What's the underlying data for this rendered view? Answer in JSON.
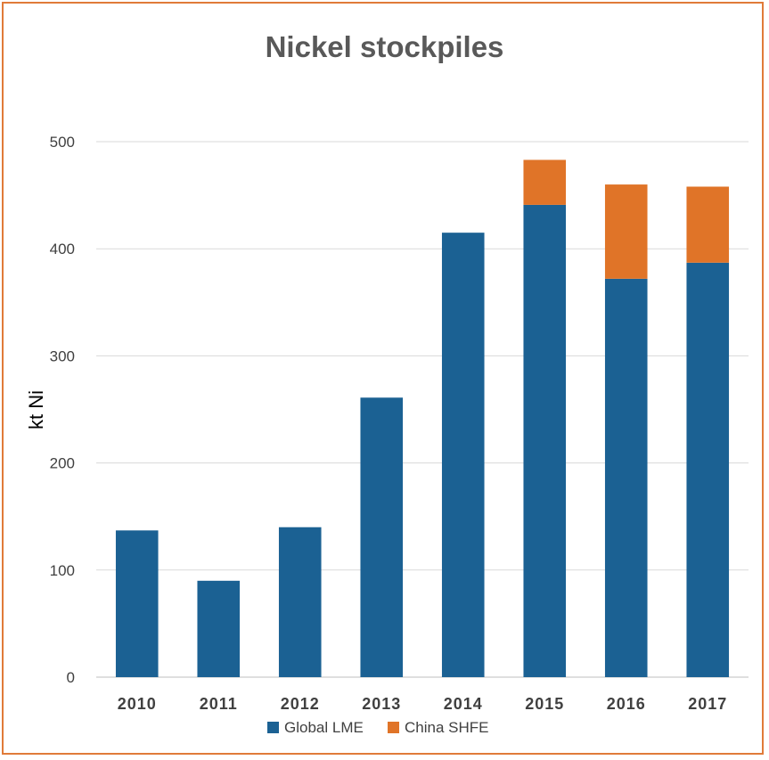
{
  "chart_data": {
    "type": "bar",
    "stacked": true,
    "title": "Nickel stockpiles",
    "ylabel": "kt Ni",
    "xlabel": "",
    "categories": [
      "2010",
      "2011",
      "2012",
      "2013",
      "2014",
      "2015",
      "2016",
      "2017"
    ],
    "series": [
      {
        "name": "Global LME",
        "color": "#1B6193",
        "values": [
          137,
          90,
          140,
          261,
          415,
          441,
          372,
          387
        ]
      },
      {
        "name": "China SHFE",
        "color": "#E07428",
        "values": [
          0,
          0,
          0,
          0,
          0,
          42,
          88,
          71
        ]
      }
    ],
    "ylim": [
      0,
      500
    ],
    "yticks": [
      "0",
      "100",
      "200",
      "300",
      "400",
      "500"
    ],
    "grid": true,
    "legend": "bottom"
  }
}
